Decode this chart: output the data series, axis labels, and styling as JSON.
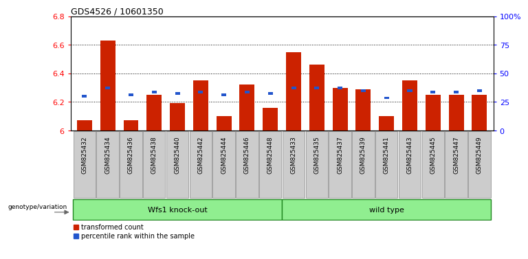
{
  "title": "GDS4526 / 10601350",
  "samples": [
    "GSM825432",
    "GSM825434",
    "GSM825436",
    "GSM825438",
    "GSM825440",
    "GSM825442",
    "GSM825444",
    "GSM825446",
    "GSM825448",
    "GSM825433",
    "GSM825435",
    "GSM825437",
    "GSM825439",
    "GSM825441",
    "GSM825443",
    "GSM825445",
    "GSM825447",
    "GSM825449"
  ],
  "red_values": [
    6.07,
    6.63,
    6.07,
    6.25,
    6.19,
    6.35,
    6.1,
    6.32,
    6.16,
    6.55,
    6.46,
    6.3,
    6.29,
    6.1,
    6.35,
    6.25,
    6.25,
    6.25
  ],
  "blue_values": [
    6.23,
    6.29,
    6.24,
    6.26,
    6.25,
    6.26,
    6.24,
    6.26,
    6.25,
    6.29,
    6.29,
    6.29,
    6.27,
    6.22,
    6.27,
    6.26,
    6.26,
    6.27
  ],
  "ymin": 6.0,
  "ymax": 6.8,
  "yticks_left": [
    6.0,
    6.2,
    6.4,
    6.6,
    6.8
  ],
  "ytick_labels_left": [
    "6",
    "6.2",
    "6.4",
    "6.6",
    "6.8"
  ],
  "yticks_right_pct": [
    0,
    25,
    50,
    75,
    100
  ],
  "ytick_labels_right": [
    "0",
    "25",
    "50",
    "75",
    "100%"
  ],
  "group1_label": "Wfs1 knock-out",
  "group2_label": "wild type",
  "group1_count": 9,
  "group2_count": 9,
  "bar_color_red": "#cc2200",
  "bar_color_blue": "#2255cc",
  "bar_width": 0.65,
  "blue_bar_height": 0.018,
  "bg_group_color": "#90ee90",
  "tick_bg_color": "#cccccc",
  "legend_red": "transformed count",
  "legend_blue": "percentile rank within the sample",
  "genotype_label": "genotype/variation"
}
